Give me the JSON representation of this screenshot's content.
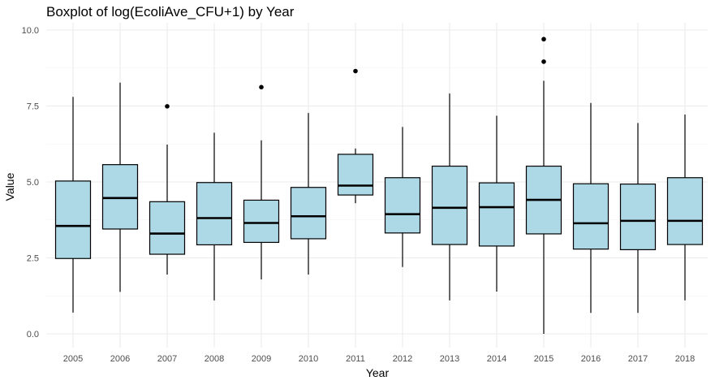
{
  "chart_data": {
    "type": "boxplot",
    "title": "Boxplot of log(EcoliAve_CFU+1) by Year",
    "xlabel": "Year",
    "ylabel": "Value",
    "ylim": [
      -0.35,
      10.15
    ],
    "y_ticks": [
      0.0,
      2.5,
      5.0,
      7.5,
      10.0
    ],
    "y_tick_labels": [
      "0.0",
      "2.5",
      "5.0",
      "7.5",
      "10.0"
    ],
    "grid": true,
    "box_fill": "#add8e6",
    "box_stroke": "#000000",
    "categories": [
      "2005",
      "2006",
      "2007",
      "2008",
      "2009",
      "2010",
      "2011",
      "2012",
      "2013",
      "2014",
      "2015",
      "2016",
      "2017",
      "2018"
    ],
    "boxes": [
      {
        "min": 0.7,
        "q1": 2.48,
        "median": 3.55,
        "q3": 5.03,
        "max": 7.8,
        "outliers": []
      },
      {
        "min": 1.38,
        "q1": 3.45,
        "median": 4.47,
        "q3": 5.57,
        "max": 8.27,
        "outliers": []
      },
      {
        "min": 1.95,
        "q1": 2.62,
        "median": 3.3,
        "q3": 4.35,
        "max": 6.23,
        "outliers": [
          7.49
        ]
      },
      {
        "min": 1.1,
        "q1": 2.93,
        "median": 3.81,
        "q3": 4.98,
        "max": 6.62,
        "outliers": []
      },
      {
        "min": 1.79,
        "q1": 3.01,
        "median": 3.65,
        "q3": 4.4,
        "max": 6.37,
        "outliers": [
          8.12
        ]
      },
      {
        "min": 1.95,
        "q1": 3.13,
        "median": 3.87,
        "q3": 4.82,
        "max": 7.27,
        "outliers": []
      },
      {
        "min": 4.3,
        "q1": 4.57,
        "median": 4.88,
        "q3": 5.91,
        "max": 6.1,
        "outliers": [
          8.65
        ]
      },
      {
        "min": 2.2,
        "q1": 3.32,
        "median": 3.94,
        "q3": 5.14,
        "max": 6.81,
        "outliers": []
      },
      {
        "min": 1.1,
        "q1": 2.94,
        "median": 4.15,
        "q3": 5.52,
        "max": 7.91,
        "outliers": []
      },
      {
        "min": 1.39,
        "q1": 2.89,
        "median": 4.17,
        "q3": 4.97,
        "max": 7.18,
        "outliers": []
      },
      {
        "min": 0.0,
        "q1": 3.29,
        "median": 4.41,
        "q3": 5.52,
        "max": 8.33,
        "outliers": [
          8.96,
          9.7
        ]
      },
      {
        "min": 0.69,
        "q1": 2.79,
        "median": 3.64,
        "q3": 4.94,
        "max": 7.6,
        "outliers": []
      },
      {
        "min": 0.69,
        "q1": 2.77,
        "median": 3.72,
        "q3": 4.93,
        "max": 6.94,
        "outliers": []
      },
      {
        "min": 1.1,
        "q1": 2.94,
        "median": 3.72,
        "q3": 5.14,
        "max": 7.22,
        "outliers": []
      }
    ]
  }
}
